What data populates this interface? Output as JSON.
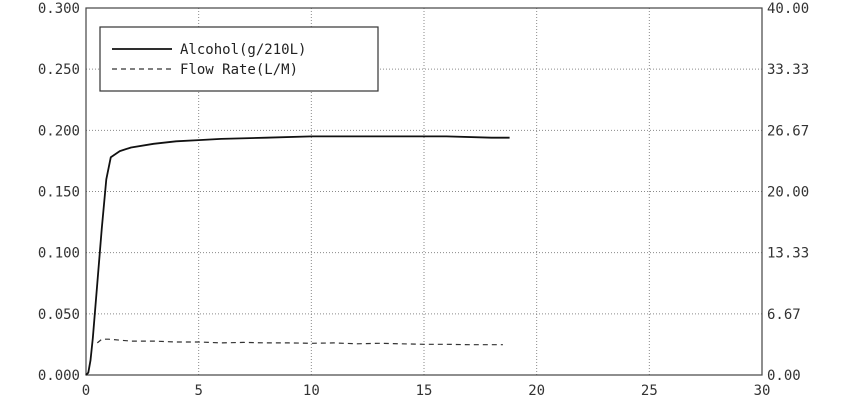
{
  "chart_data": {
    "type": "line",
    "grid": true,
    "legend_position": "top-left",
    "xlim": [
      0,
      30
    ],
    "ylim_left": [
      0,
      0.3
    ],
    "ylim_right": [
      0,
      40
    ],
    "x_ticks": [
      "0",
      "5",
      "10",
      "15",
      "20",
      "25",
      "30"
    ],
    "y_left_ticks": [
      "0.000",
      "0.050",
      "0.100",
      "0.150",
      "0.200",
      "0.250",
      "0.300"
    ],
    "y_right_ticks": [
      "0.00",
      "6.67",
      "13.33",
      "20.00",
      "26.67",
      "33.33",
      "40.00"
    ],
    "series": [
      {
        "name": "Alcohol(g/210L)",
        "axis": "left",
        "style": "solid",
        "color": "#111111",
        "x": [
          0,
          0.1,
          0.2,
          0.3,
          0.5,
          0.7,
          0.9,
          1.1,
          1.5,
          2,
          3,
          4,
          5,
          6,
          8,
          10,
          12,
          14,
          16,
          18,
          18.8
        ],
        "y": [
          0,
          0.002,
          0.012,
          0.03,
          0.075,
          0.12,
          0.16,
          0.178,
          0.183,
          0.186,
          0.189,
          0.191,
          0.192,
          0.193,
          0.194,
          0.195,
          0.195,
          0.195,
          0.195,
          0.194,
          0.194
        ]
      },
      {
        "name": "Flow Rate(L/M)",
        "axis": "right",
        "style": "dashed",
        "color": "#333333",
        "x": [
          0.5,
          0.7,
          1,
          2,
          3,
          4,
          5,
          6,
          7,
          8,
          9,
          10,
          11,
          12,
          13,
          14,
          15,
          16,
          17,
          18,
          18.5
        ],
        "y": [
          3.5,
          3.9,
          3.9,
          3.7,
          3.7,
          3.6,
          3.6,
          3.5,
          3.55,
          3.5,
          3.5,
          3.45,
          3.5,
          3.4,
          3.45,
          3.4,
          3.35,
          3.35,
          3.3,
          3.3,
          3.3
        ]
      }
    ]
  }
}
